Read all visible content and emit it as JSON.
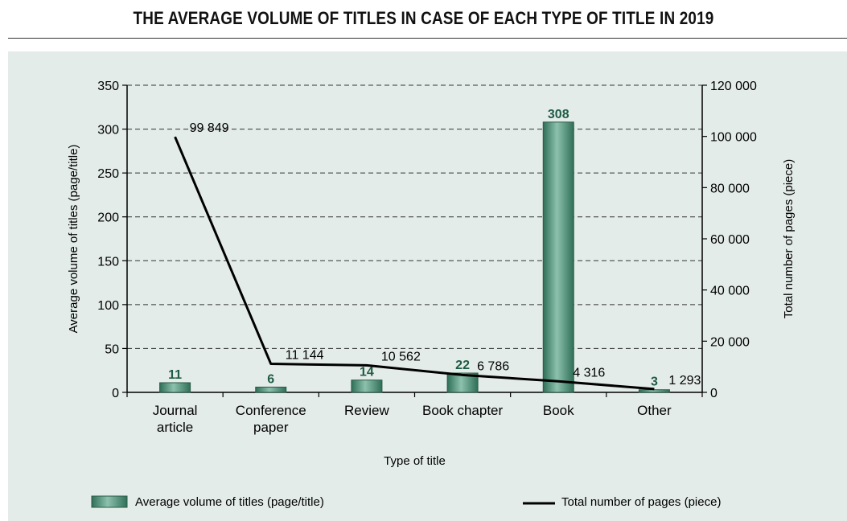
{
  "title": "THE AVERAGE VOLUME OF TITLES IN CASE OF EACH TYPE OF TITLE IN 2019",
  "colors": {
    "bar": "#3d8a70",
    "bar_label": "#1f5c45",
    "line": "#000000",
    "panel": "#e3ece8"
  },
  "chart_data": {
    "type": "bar",
    "title": "THE AVERAGE VOLUME OF TITLES IN CASE OF EACH TYPE OF TITLE IN 2019",
    "categories": [
      "Journal article",
      "Conference paper",
      "Review",
      "Book chapter",
      "Book",
      "Other"
    ],
    "category_lines": [
      [
        "Journal",
        "article"
      ],
      [
        "Conference",
        "paper"
      ],
      [
        "Review"
      ],
      [
        "Book chapter"
      ],
      [
        "Book"
      ],
      [
        "Other"
      ]
    ],
    "xlabel": "Type of title",
    "ylabel": "Average volume of titles (page/title)",
    "y2label": "Total number of pages (piece)",
    "ylim": [
      0,
      350
    ],
    "y2lim": [
      0,
      120000
    ],
    "yticks": [
      0,
      50,
      100,
      150,
      200,
      250,
      300,
      350
    ],
    "y2ticks": [
      "0",
      "20 000",
      "40 000",
      "60 000",
      "80 000",
      "100 000",
      "120 000"
    ],
    "y2tick_values": [
      0,
      20000,
      40000,
      60000,
      80000,
      100000,
      120000
    ],
    "grid": true,
    "legend_position": "bottom",
    "series": [
      {
        "name": "Average volume of titles (page/title)",
        "type": "bar",
        "axis": "left",
        "values": [
          11,
          6,
          14,
          22,
          308,
          3
        ],
        "labels": [
          "11",
          "6",
          "14",
          "22",
          "308",
          "3"
        ]
      },
      {
        "name": "Total number of pages (piece)",
        "type": "line",
        "axis": "right",
        "values": [
          99849,
          11144,
          10562,
          6786,
          4316,
          1293
        ],
        "labels": [
          "99 849",
          "11 144",
          "10 562",
          "6 786",
          "4 316",
          "1 293"
        ]
      }
    ]
  }
}
